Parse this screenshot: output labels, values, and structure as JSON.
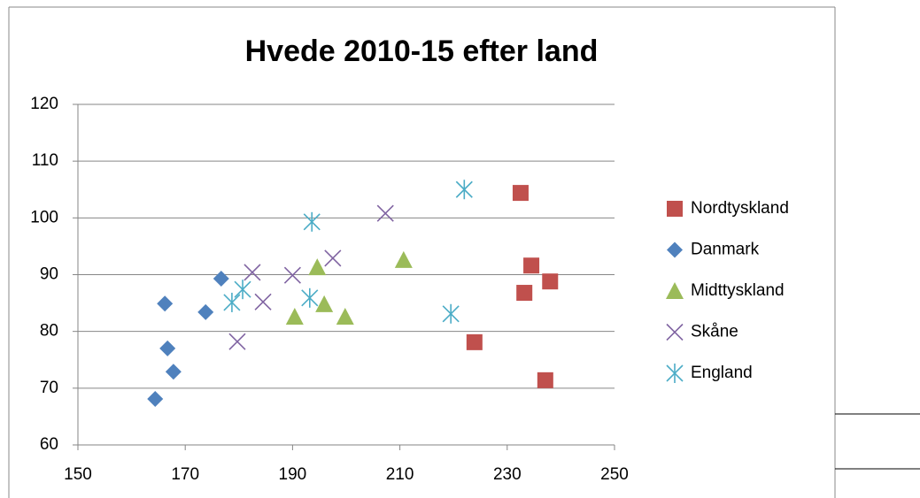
{
  "chart_data": {
    "type": "scatter",
    "title": "Hvede 2010-15 efter land",
    "series": [
      {
        "name": "Nordtyskland",
        "color": "#c0504d",
        "marker": "square",
        "x": [
          232.5,
          234.5,
          233.2,
          238,
          223.9,
          237.1
        ],
        "values": [
          104.4,
          91.6,
          86.8,
          88.8,
          78.1,
          71.4
        ]
      },
      {
        "name": "Danmark",
        "color": "#4f81bd",
        "marker": "diamond",
        "x": [
          166.2,
          176.7,
          173.8,
          166.7,
          167.8,
          164.4
        ],
        "values": [
          84.9,
          89.3,
          83.4,
          77,
          72.9,
          68.1
        ]
      },
      {
        "name": "Midttyskland",
        "color": "#9bbb59",
        "marker": "triangle",
        "x": [
          194.6,
          210.7,
          190.4,
          195.9,
          199.8
        ],
        "values": [
          91.3,
          92.6,
          82.6,
          84.8,
          82.6
        ]
      },
      {
        "name": "Skåne",
        "color": "#8064a2",
        "marker": "x",
        "x": [
          207.3,
          197.5,
          182.5,
          190,
          184.5,
          179.7
        ],
        "values": [
          100.8,
          92.9,
          90.4,
          89.9,
          85.2,
          78.2
        ]
      },
      {
        "name": "England",
        "color": "#4bacc6",
        "marker": "star",
        "x": [
          222,
          193.6,
          180.7,
          178.7,
          193.2,
          219.5
        ],
        "values": [
          105,
          99.3,
          87.4,
          85.1,
          85.9,
          83.1
        ]
      }
    ],
    "xlim": [
      150,
      250
    ],
    "xticks": [
      150,
      170,
      190,
      210,
      230,
      250
    ],
    "ylim": [
      60,
      120
    ],
    "yticks": [
      60,
      70,
      80,
      90,
      100,
      110,
      120
    ],
    "grid": true,
    "legend": "right"
  }
}
